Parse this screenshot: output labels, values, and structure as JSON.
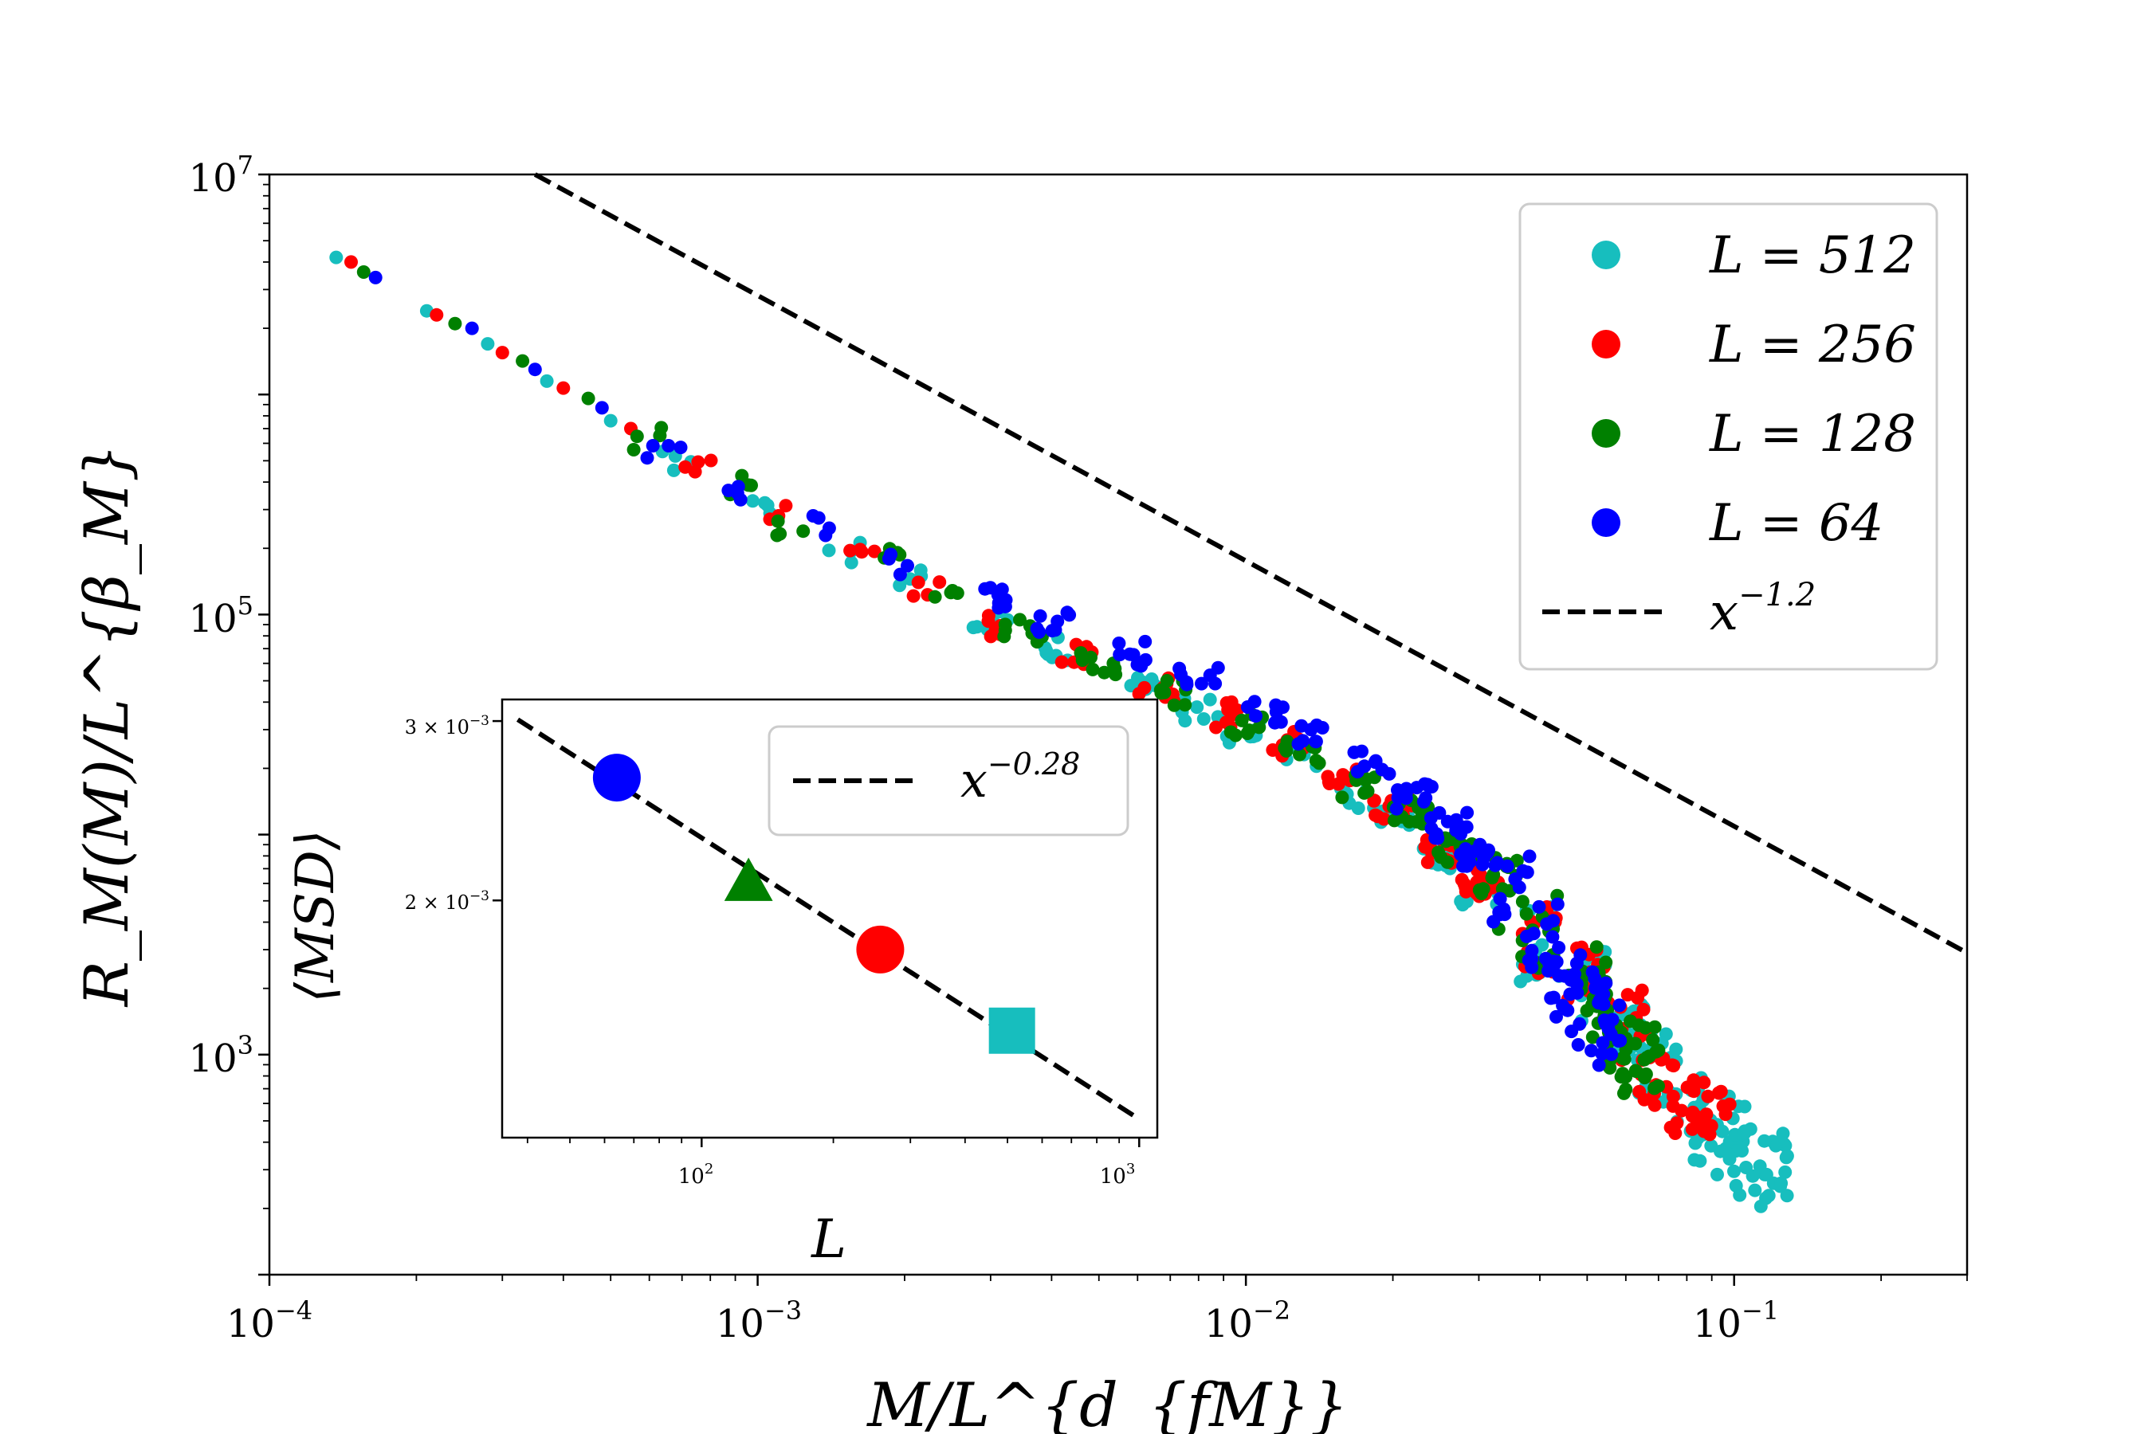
{
  "chart_data": [
    {
      "type": "scatter",
      "id": "main",
      "xscale": "log",
      "yscale": "log",
      "xlim": [
        0.0001,
        0.3
      ],
      "ylim": [
        100,
        10000000
      ],
      "xlabel": "M/L^{d_{fM}}",
      "ylabel": "R_M(M)/L^{β_M}",
      "xtick_labels": [
        {
          "value": 0.0001,
          "base": "10",
          "exp": "−4"
        },
        {
          "value": 0.001,
          "base": "10",
          "exp": "−3"
        },
        {
          "value": 0.01,
          "base": "10",
          "exp": "−2"
        },
        {
          "value": 0.1,
          "base": "10",
          "exp": "−1"
        }
      ],
      "ytick_labels": [
        {
          "value": 1000,
          "base": "10",
          "exp": "3"
        },
        {
          "value": 100000,
          "base": "10",
          "exp": "5"
        },
        {
          "value": 10000000,
          "base": "10",
          "exp": "7"
        }
      ],
      "legend": {
        "position": "upper-right",
        "entries": [
          {
            "label": "L = 512",
            "color": "#17BEBE",
            "marker": "circle"
          },
          {
            "label": "L = 256",
            "color": "#FF0000",
            "marker": "circle"
          },
          {
            "label": "L = 128",
            "color": "#008000",
            "marker": "circle"
          },
          {
            "label": "L = 64",
            "color": "#0000FF",
            "marker": "circle"
          },
          {
            "label": "x^{−1.2}",
            "base": "x",
            "exp": "−1.2",
            "color": "#000000",
            "marker": "dashed-line"
          }
        ]
      },
      "reference_line": {
        "label": "x^{−1.2}",
        "slope": -1.2,
        "points": [
          [
            0.00035,
            10000000
          ],
          [
            0.3,
            2900
          ]
        ]
      },
      "series": [
        {
          "name": "L = 512",
          "color": "#17BEBE",
          "points": [
            [
              0.000137,
              4200000
            ],
            [
              0.00021,
              2400000
            ],
            [
              0.00028,
              1700000
            ],
            [
              0.00037,
              1150000
            ],
            [
              0.0005,
              760000
            ],
            [
              0.0007,
              490000
            ],
            [
              0.001,
              310000
            ],
            [
              0.0015,
              195000
            ],
            [
              0.002,
              142000
            ],
            [
              0.003,
              93000
            ],
            [
              0.004,
              70000
            ],
            [
              0.006,
              49000
            ],
            [
              0.008,
              37000
            ],
            [
              0.01,
              30000
            ],
            [
              0.013,
              22000
            ],
            [
              0.017,
              15000
            ],
            [
              0.02,
              12000
            ],
            [
              0.025,
              8000
            ],
            [
              0.03,
              5500
            ],
            [
              0.04,
              3200
            ],
            [
              0.05,
              2000
            ],
            [
              0.06,
              1300
            ],
            [
              0.07,
              900
            ],
            [
              0.08,
              620
            ],
            [
              0.09,
              480
            ],
            [
              0.1,
              400
            ],
            [
              0.11,
              330
            ],
            [
              0.12,
              300
            ]
          ]
        },
        {
          "name": "L = 256",
          "color": "#FF0000",
          "points": [
            [
              0.000147,
              4000000
            ],
            [
              0.00022,
              2300000
            ],
            [
              0.0003,
              1550000
            ],
            [
              0.0004,
              1070000
            ],
            [
              0.00055,
              700000
            ],
            [
              0.00075,
              460000
            ],
            [
              0.0011,
              290000
            ],
            [
              0.0016,
              190000
            ],
            [
              0.0022,
              135000
            ],
            [
              0.0032,
              90000
            ],
            [
              0.0045,
              66000
            ],
            [
              0.0065,
              46000
            ],
            [
              0.009,
              35000
            ],
            [
              0.012,
              26000
            ],
            [
              0.016,
              18000
            ],
            [
              0.02,
              13000
            ],
            [
              0.025,
              8500
            ],
            [
              0.03,
              6000
            ],
            [
              0.04,
              3500
            ],
            [
              0.05,
              2100
            ],
            [
              0.06,
              1400
            ],
            [
              0.07,
              850
            ],
            [
              0.08,
              640
            ],
            [
              0.09,
              520
            ]
          ]
        },
        {
          "name": "L = 128",
          "color": "#008000",
          "points": [
            [
              0.000156,
              3600000
            ],
            [
              0.00024,
              2100000
            ],
            [
              0.00033,
              1420000
            ],
            [
              0.00045,
              960000
            ],
            [
              0.0006,
              640000
            ],
            [
              0.0009,
              400000
            ],
            [
              0.0012,
              260000
            ],
            [
              0.0018,
              175000
            ],
            [
              0.0025,
              125000
            ],
            [
              0.0035,
              86000
            ],
            [
              0.005,
              61000
            ],
            [
              0.007,
              44000
            ],
            [
              0.01,
              32000
            ],
            [
              0.013,
              24000
            ],
            [
              0.017,
              16500
            ],
            [
              0.022,
              12500
            ],
            [
              0.027,
              8500
            ],
            [
              0.033,
              5500
            ],
            [
              0.04,
              3600
            ],
            [
              0.05,
              2300
            ],
            [
              0.055,
              1300
            ],
            [
              0.06,
              1000
            ],
            [
              0.065,
              900
            ]
          ]
        },
        {
          "name": "L = 64",
          "color": "#0000FF",
          "points": [
            [
              0.000165,
              3400000
            ],
            [
              0.00026,
              2000000
            ],
            [
              0.00035,
              1300000
            ],
            [
              0.00048,
              870000
            ],
            [
              0.00065,
              570000
            ],
            [
              0.0009,
              380000
            ],
            [
              0.0013,
              250000
            ],
            [
              0.002,
              165000
            ],
            [
              0.003,
              120000
            ],
            [
              0.004,
              90000
            ],
            [
              0.006,
              67000
            ],
            [
              0.008,
              50000
            ],
            [
              0.011,
              37000
            ],
            [
              0.014,
              28000
            ],
            [
              0.018,
              21000
            ],
            [
              0.022,
              15000
            ],
            [
              0.026,
              11000
            ],
            [
              0.03,
              8000
            ],
            [
              0.035,
              5500
            ],
            [
              0.04,
              3500
            ],
            [
              0.045,
              2200
            ],
            [
              0.05,
              1600
            ],
            [
              0.055,
              1300
            ]
          ]
        }
      ]
    },
    {
      "type": "scatter",
      "id": "inset",
      "xscale": "log",
      "yscale": "log",
      "xlim": [
        35,
        1100
      ],
      "ylim": [
        0.00117,
        0.00315
      ],
      "xlabel": "L",
      "ylabel": "⟨MSD⟩",
      "xtick_labels": [
        {
          "value": 100,
          "base": "10",
          "exp": "2"
        },
        {
          "value": 1000,
          "base": "10",
          "exp": "3"
        }
      ],
      "ytick_labels": [
        {
          "value": 0.002,
          "mant": "2 × 10",
          "exp": "−3"
        },
        {
          "value": 0.003,
          "mant": "3 × 10",
          "exp": "−3"
        }
      ],
      "legend": {
        "position": "upper-right",
        "entries": [
          {
            "label": "x^{−0.28}",
            "base": "x",
            "exp": "−0.28",
            "color": "#000000",
            "marker": "dashed-line"
          }
        ]
      },
      "fit_line": {
        "label": "x^{−0.28}",
        "slope": -0.28,
        "points": [
          [
            38,
            0.00301
          ],
          [
            1000,
            0.00122
          ]
        ]
      },
      "points": [
        {
          "L": 64,
          "msd": 0.00264,
          "color": "#0000FF",
          "marker": "circle"
        },
        {
          "L": 128,
          "msd": 0.00208,
          "color": "#008000",
          "marker": "triangle"
        },
        {
          "L": 256,
          "msd": 0.00179,
          "color": "#FF0000",
          "marker": "circle"
        },
        {
          "L": 512,
          "msd": 0.00149,
          "color": "#17BEBE",
          "marker": "square"
        }
      ]
    }
  ]
}
